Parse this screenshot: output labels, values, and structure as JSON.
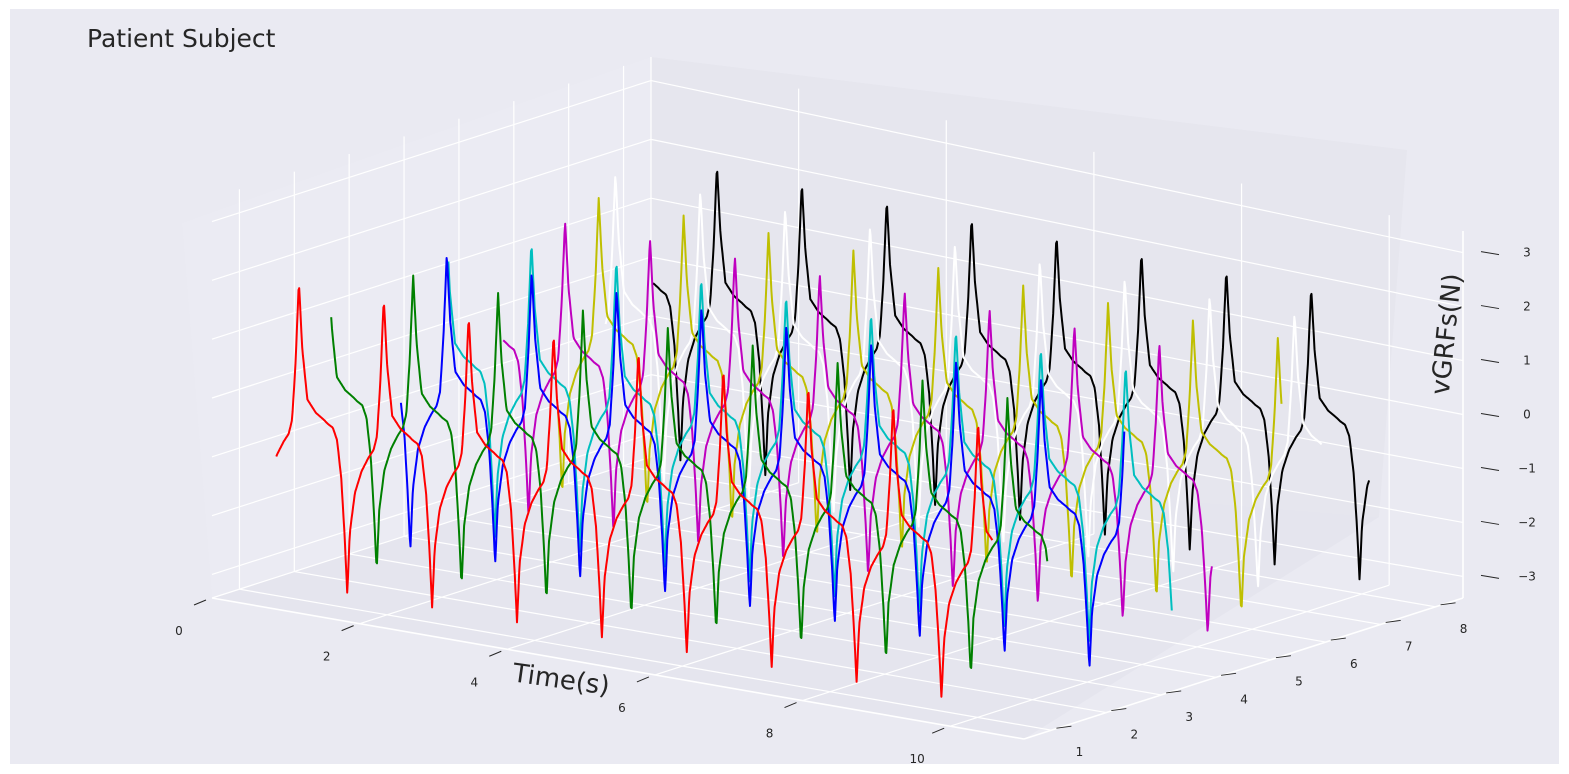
{
  "chart_data": {
    "type": "line",
    "projection": "3d",
    "title": "Patient Subject",
    "xlabel": "Time(s)",
    "ylabel": "",
    "zlabel": "vGRFs(N)",
    "x_ticks": [
      "0",
      "2",
      "4",
      "6",
      "8",
      "10"
    ],
    "y_ticks": [
      "1",
      "2",
      "3",
      "4",
      "5",
      "6",
      "7",
      "8"
    ],
    "z_ticks": [
      "−3",
      "−2",
      "−1",
      "0",
      "1",
      "2",
      "3"
    ],
    "xlim": [
      0,
      11.0
    ],
    "ylim": [
      0.5,
      8.5
    ],
    "zlim": [
      -3.4,
      3.4
    ],
    "grid": true,
    "waveform": {
      "period_s": 1.15,
      "shape": [
        [
          0.0,
          -0.25
        ],
        [
          0.04,
          -0.3
        ],
        [
          0.1,
          -0.35
        ],
        [
          0.15,
          -0.55
        ],
        [
          0.2,
          -1.2
        ],
        [
          0.24,
          -2.2
        ],
        [
          0.27,
          -3.15
        ],
        [
          0.3,
          -2.1
        ],
        [
          0.36,
          -1.4
        ],
        [
          0.44,
          -1.0
        ],
        [
          0.52,
          -0.75
        ],
        [
          0.58,
          -0.6
        ],
        [
          0.62,
          -0.35
        ],
        [
          0.66,
          0.6
        ],
        [
          0.7,
          2.05
        ],
        [
          0.74,
          0.9
        ],
        [
          0.8,
          0.05
        ],
        [
          0.9,
          -0.15
        ],
        [
          1.0,
          -0.25
        ]
      ]
    },
    "series": [
      {
        "y": 1,
        "color": "#ff0000",
        "x_start": 0.5,
        "x_end": 10.2,
        "phase": 0.0
      },
      {
        "y": 2,
        "color": "#008000",
        "x_start": 0.5,
        "x_end": 10.2,
        "phase": 0.3
      },
      {
        "y": 3,
        "color": "#0000ff",
        "x_start": 0.7,
        "x_end": 10.5,
        "phase": 0.55
      },
      {
        "y": 4,
        "color": "#00bfbf",
        "x_start": 0.6,
        "x_end": 10.4,
        "phase": 0.2
      },
      {
        "y": 5,
        "color": "#bf00bf",
        "x_start": 0.6,
        "x_end": 10.2,
        "phase": 0.45
      },
      {
        "y": 6,
        "color": "#bfbf00",
        "x_start": 0.6,
        "x_end": 10.4,
        "phase": 0.7
      },
      {
        "y": 7,
        "color": "#ffffff",
        "x_start": 0.5,
        "x_end": 10.2,
        "phase": 0.15
      },
      {
        "y": 8,
        "color": "#000000",
        "x_start": 0.4,
        "x_end": 10.1,
        "phase": 0.6
      }
    ]
  }
}
